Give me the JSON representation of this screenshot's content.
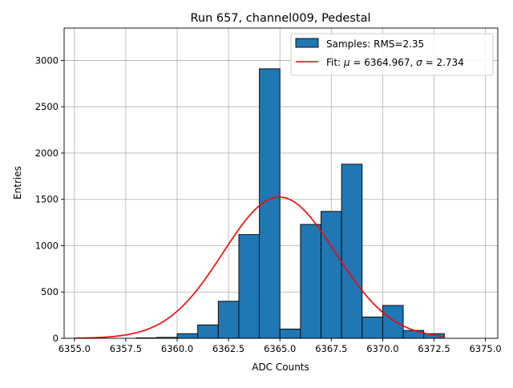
{
  "chart_data": {
    "type": "bar",
    "title": "Run 657, channel009, Pedestal",
    "xlabel": "ADC Counts",
    "ylabel": "Entries",
    "xlim": [
      6354.5,
      6375.6
    ],
    "ylim": [
      0,
      3350
    ],
    "xticks": [
      6355.0,
      6357.5,
      6360.0,
      6362.5,
      6365.0,
      6367.5,
      6370.0,
      6372.5,
      6375.0
    ],
    "xtick_labels": [
      "6355.0",
      "6357.5",
      "6360.0",
      "6362.5",
      "6365.0",
      "6367.5",
      "6370.0",
      "6372.5",
      "6375.0"
    ],
    "yticks": [
      0,
      500,
      1000,
      1500,
      2000,
      2500,
      3000
    ],
    "ytick_labels": [
      "0",
      "500",
      "1000",
      "1500",
      "2000",
      "2500",
      "3000"
    ],
    "grid": true,
    "legend_position": "top-right",
    "histogram": {
      "name": "Samples: RMS=2.35",
      "color": "#1f77b4",
      "edge_color": "#000000",
      "bin_edges": [
        6358,
        6359,
        6360,
        6361,
        6362,
        6363,
        6364,
        6365,
        6366,
        6367,
        6368,
        6369,
        6370,
        6371,
        6372,
        6373
      ],
      "counts": [
        5,
        10,
        50,
        145,
        400,
        1120,
        2910,
        100,
        1230,
        1370,
        1880,
        230,
        355,
        85,
        50,
        25
      ]
    },
    "fit": {
      "name": "Fit: μ = 6364.967, σ = 2.734",
      "legend_parts": {
        "prefix": "Fit: ",
        "mu_symbol": "μ",
        "mu_text": " = 6364.967, ",
        "sigma_symbol": "σ",
        "sigma_text": " = 2.734"
      },
      "color": "#ff0000",
      "mu": 6364.967,
      "sigma": 2.734,
      "amplitude": 1525,
      "x_range": [
        6355.0,
        6373.0
      ]
    }
  }
}
